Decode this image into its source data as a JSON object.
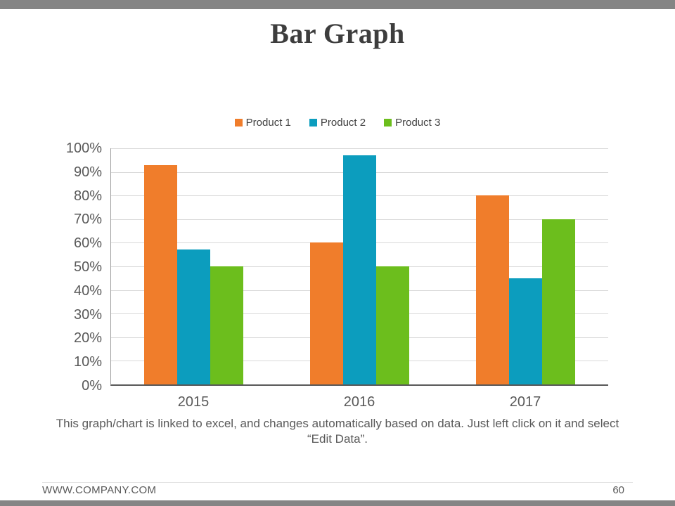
{
  "slide": {
    "title": "Bar Graph",
    "caption": "This graph/chart is linked to excel, and changes automatically based on data. Just left click on it and select “Edit Data”.",
    "footer": {
      "website": "WWW.COMPANY.COM",
      "page_number": "60"
    }
  },
  "colors": {
    "edge_bars": "#858585",
    "title_text": "#3d3d3d",
    "axis_text": "#595959",
    "gridline": "#d9d9d9",
    "series": [
      "#F07D2B",
      "#0C9DBE",
      "#6CBE1D"
    ]
  },
  "chart_data": {
    "type": "bar",
    "title": "",
    "xlabel": "",
    "ylabel": "",
    "categories": [
      "2015",
      "2016",
      "2017"
    ],
    "series": [
      {
        "name": "Product 1",
        "color": "#F07D2B",
        "values": [
          93,
          60,
          80
        ]
      },
      {
        "name": "Product 2",
        "color": "#0C9DBE",
        "values": [
          57,
          97,
          45
        ]
      },
      {
        "name": "Product 3",
        "color": "#6CBE1D",
        "values": [
          50,
          50,
          70
        ]
      }
    ],
    "ylim": [
      0,
      100
    ],
    "ytick_step": 10,
    "ytick_suffix": "%",
    "grid": true,
    "legend_position": "top"
  }
}
